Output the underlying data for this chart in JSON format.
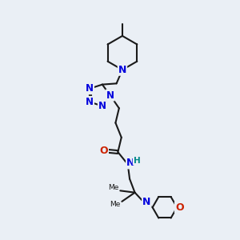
{
  "background_color": "#eaeff5",
  "bond_color": "#1a1a1a",
  "bond_width": 1.5,
  "atom_colors": {
    "N": "#0000dd",
    "O": "#cc2200",
    "H": "#008888",
    "C": "#1a1a1a"
  },
  "font_size_N": 9,
  "font_size_O": 9,
  "font_size_H": 7.5,
  "font_size_me": 6.5
}
